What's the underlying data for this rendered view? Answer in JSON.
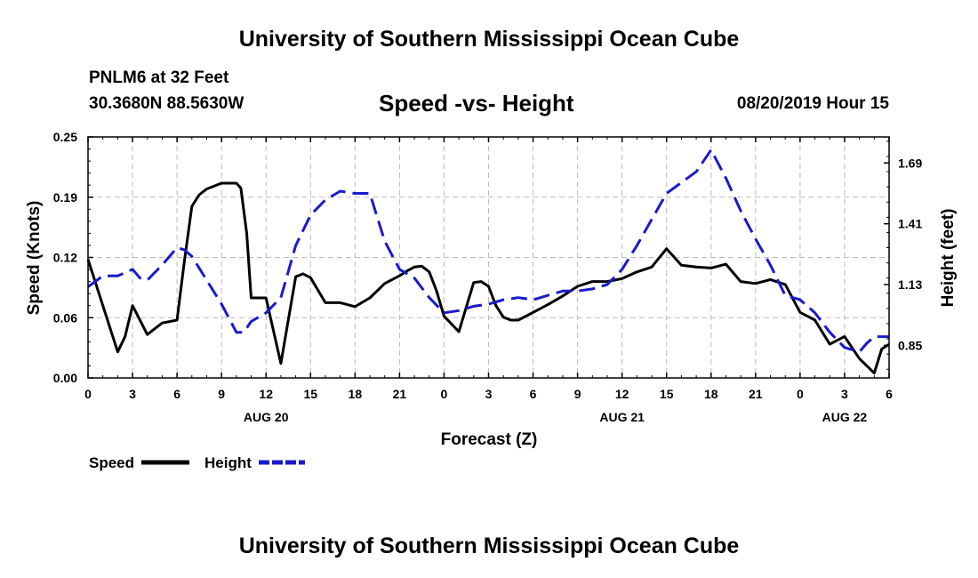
{
  "header": {
    "title": "University of Southern Mississippi Ocean Cube",
    "station": "PNLM6 at 32 Feet",
    "coords": "30.3680N 88.5630W",
    "chart_title": "Speed -vs- Height",
    "timestamp": "08/20/2019 Hour 15"
  },
  "footer": {
    "title": "University of Southern Mississippi Ocean Cube"
  },
  "colors": {
    "speed": "#000000",
    "height": "#1a1acc",
    "grid": "#bbbbbb"
  },
  "chart_data": {
    "type": "line",
    "title": "Speed -vs- Height",
    "xlabel": "Forecast (Z)",
    "ylabel_left": "Speed (Knots)",
    "ylabel_right": "Height (feet)",
    "x_range": [
      0,
      54
    ],
    "y_left_range": [
      0,
      0.25
    ],
    "y_right_range": [
      0.7,
      1.81
    ],
    "x_ticks": [
      0,
      3,
      6,
      9,
      12,
      15,
      18,
      21,
      24,
      27,
      30,
      33,
      36,
      39,
      42,
      45,
      48,
      51,
      54
    ],
    "x_tick_labels": [
      "0",
      "3",
      "6",
      "9",
      "12",
      "15",
      "18",
      "21",
      "0",
      "3",
      "6",
      "9",
      "12",
      "15",
      "18",
      "21",
      "0",
      "3",
      "6"
    ],
    "y_left_ticks": [
      0,
      0.0625,
      0.125,
      0.1875,
      0.25
    ],
    "y_left_tick_labels": [
      "0.00",
      "0.06",
      "0.12",
      "0.19",
      "0.25"
    ],
    "y_right_ticks": [
      0.85,
      1.13,
      1.41,
      1.69
    ],
    "y_right_tick_labels": [
      "0.85",
      "1.13",
      "1.41",
      "1.69"
    ],
    "date_labels": [
      {
        "x": 12,
        "label": "AUG 20"
      },
      {
        "x": 36,
        "label": "AUG 21"
      },
      {
        "x": 51,
        "label": "AUG 22"
      }
    ],
    "grid": true,
    "legend": [
      {
        "name": "Speed",
        "series": "speed",
        "style": "solid"
      },
      {
        "name": "Height",
        "series": "height",
        "style": "dashed"
      }
    ],
    "series": [
      {
        "name": "Speed",
        "axis": "left",
        "style": "solid",
        "x": [
          0,
          1,
          2,
          2.5,
          3,
          4,
          5,
          6,
          6.5,
          7,
          7.5,
          8,
          9,
          9.5,
          10,
          10.3,
          10.7,
          11,
          12,
          13,
          14,
          14.5,
          15,
          16,
          17,
          18,
          19,
          20,
          21,
          21.5,
          22,
          22.5,
          23,
          23.5,
          24,
          25,
          26,
          26.5,
          27,
          27.5,
          28,
          28.5,
          29,
          30,
          31,
          32,
          33,
          34,
          35,
          36,
          37,
          38,
          39,
          40,
          41,
          42,
          43,
          44,
          45,
          46,
          47,
          48,
          48.5,
          49,
          50,
          51,
          52,
          53,
          53.5,
          54
        ],
        "values": [
          0.123,
          0.075,
          0.027,
          0.043,
          0.075,
          0.045,
          0.057,
          0.06,
          0.122,
          0.178,
          0.19,
          0.196,
          0.202,
          0.202,
          0.202,
          0.197,
          0.15,
          0.083,
          0.083,
          0.015,
          0.105,
          0.108,
          0.104,
          0.078,
          0.078,
          0.074,
          0.083,
          0.098,
          0.106,
          0.111,
          0.115,
          0.116,
          0.11,
          0.09,
          0.064,
          0.048,
          0.099,
          0.1,
          0.095,
          0.075,
          0.063,
          0.06,
          0.06,
          0.068,
          0.076,
          0.085,
          0.095,
          0.1,
          0.1,
          0.103,
          0.11,
          0.115,
          0.134,
          0.117,
          0.115,
          0.114,
          0.118,
          0.1,
          0.098,
          0.102,
          0.097,
          0.068,
          0.064,
          0.06,
          0.035,
          0.043,
          0.02,
          0.005,
          0.03,
          0.035
        ]
      },
      {
        "name": "Height",
        "axis": "right",
        "style": "dashed",
        "x": [
          0,
          1,
          2,
          3,
          3.5,
          4,
          5,
          6,
          6.5,
          7,
          8,
          9,
          10,
          10.5,
          11,
          12,
          13,
          14,
          15,
          16,
          17,
          18,
          19,
          20,
          21,
          22,
          23,
          24,
          25,
          26,
          27,
          28,
          29,
          30,
          31,
          32,
          33,
          34,
          35,
          36,
          37,
          38,
          39,
          40,
          41,
          42,
          43,
          44,
          45,
          46,
          47,
          48,
          49,
          50,
          51,
          52,
          52.5,
          53,
          54
        ],
        "values": [
          1.12,
          1.17,
          1.17,
          1.2,
          1.16,
          1.15,
          1.22,
          1.3,
          1.29,
          1.26,
          1.15,
          1.04,
          0.91,
          0.91,
          0.96,
          1.0,
          1.07,
          1.31,
          1.45,
          1.52,
          1.56,
          1.55,
          1.55,
          1.33,
          1.2,
          1.16,
          1.07,
          1.0,
          1.01,
          1.03,
          1.04,
          1.06,
          1.07,
          1.06,
          1.08,
          1.1,
          1.1,
          1.11,
          1.13,
          1.2,
          1.31,
          1.43,
          1.55,
          1.6,
          1.65,
          1.75,
          1.62,
          1.47,
          1.34,
          1.22,
          1.08,
          1.06,
          1.0,
          0.91,
          0.84,
          0.82,
          0.86,
          0.89,
          0.89
        ]
      }
    ]
  }
}
